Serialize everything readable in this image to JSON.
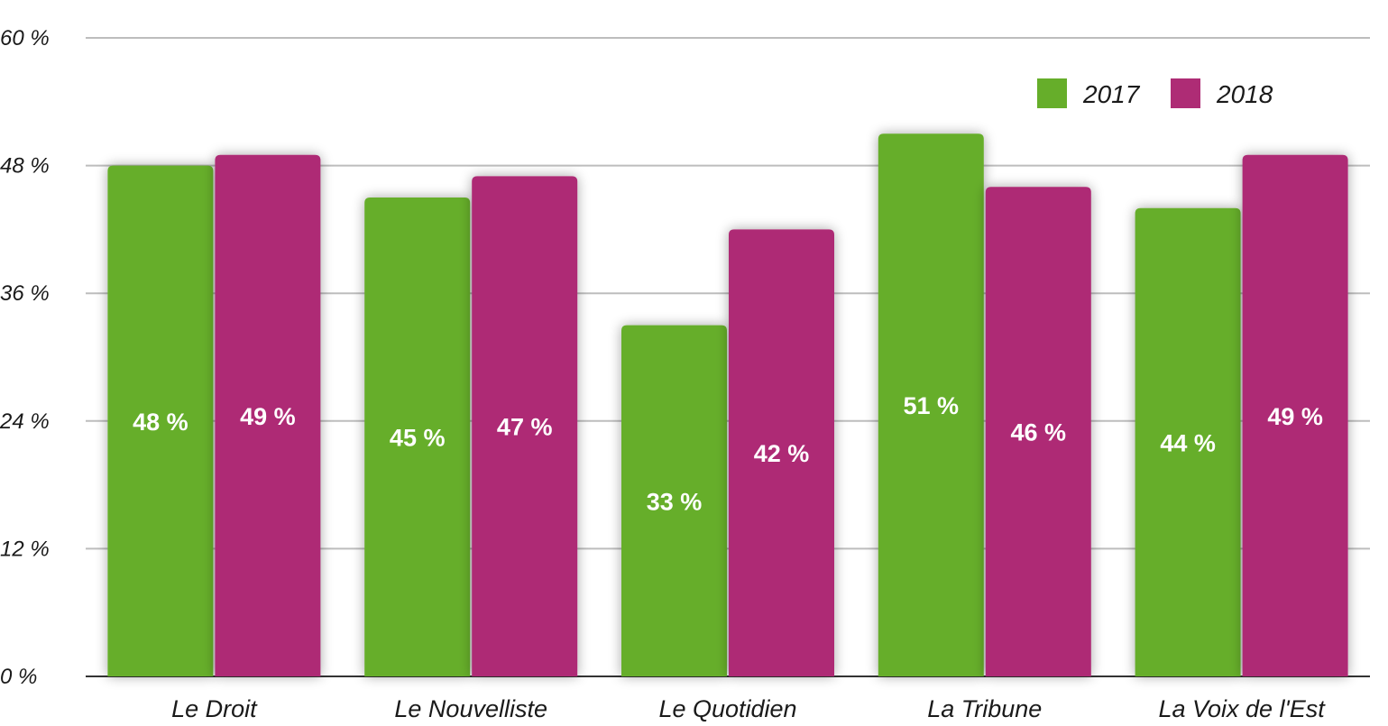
{
  "chart_data": {
    "type": "bar",
    "categories": [
      "Le Droit",
      "Le Nouvelliste",
      "Le Quotidien",
      "La Tribune",
      "La Voix de l'Est"
    ],
    "series": [
      {
        "name": "2017",
        "values": [
          48,
          45,
          33,
          51,
          44
        ],
        "color": "#66ae2a"
      },
      {
        "name": "2018",
        "values": [
          49,
          47,
          42,
          46,
          49
        ],
        "color": "#ae2c75"
      }
    ],
    "ylim": [
      0,
      60
    ],
    "yticks": [
      0,
      12,
      24,
      36,
      48,
      60
    ],
    "tick_suffix": " %",
    "data_labels": [
      [
        "48 %",
        "45 %",
        "33 %",
        "51 %",
        "44 %"
      ],
      [
        "49 %",
        "47 %",
        "42 %",
        "46 %",
        "49 %"
      ]
    ],
    "grid": true,
    "legend": "top-right",
    "title": "",
    "xlabel": "",
    "ylabel": ""
  }
}
